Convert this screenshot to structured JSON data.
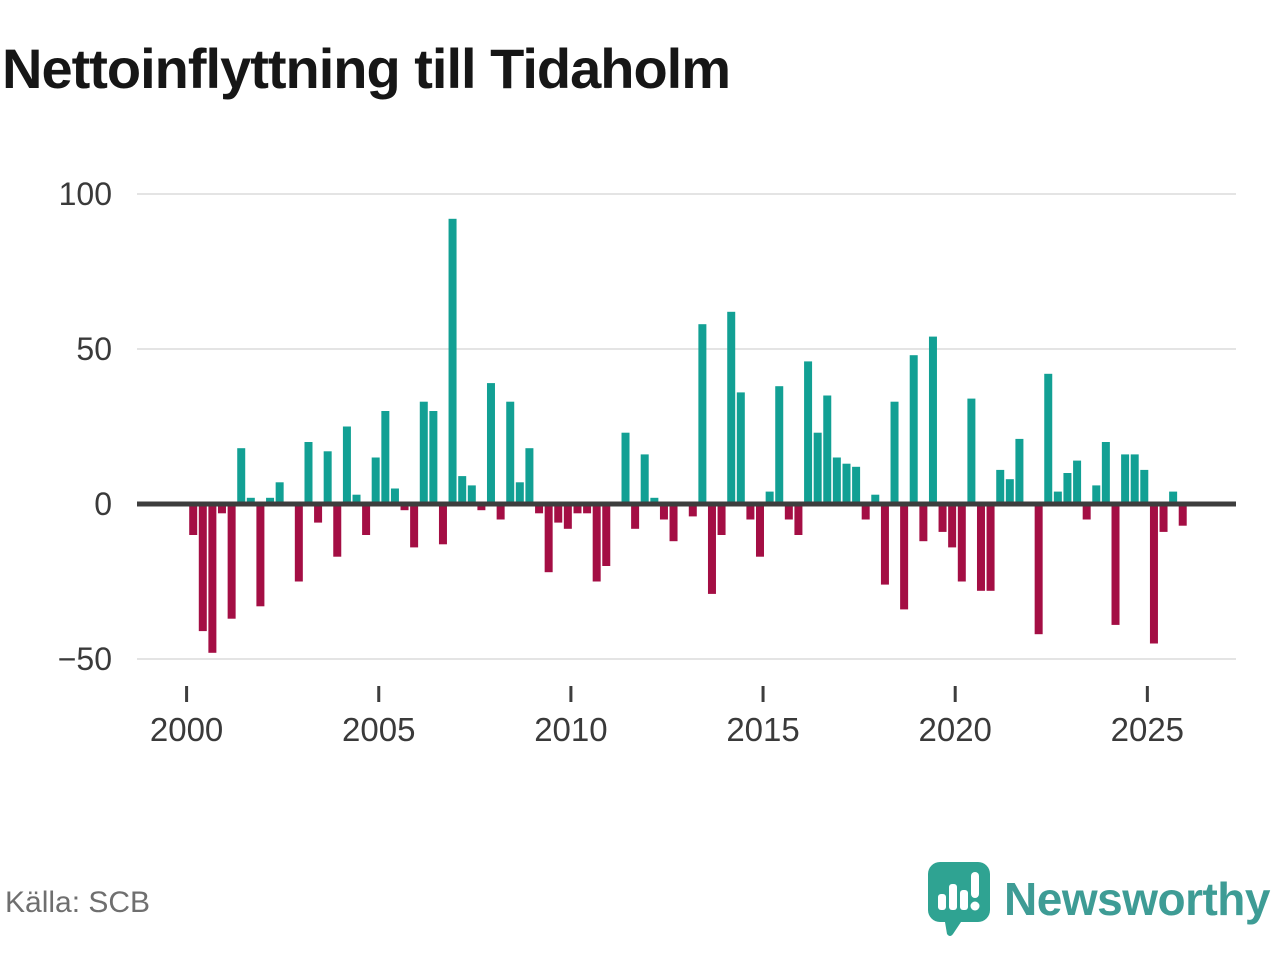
{
  "title": "Nettoinflyttning till Tidaholm",
  "source": "Källa: SCB",
  "branding": {
    "name": "Newsworthy"
  },
  "colors": {
    "positive": "#12a094",
    "negative": "#a40e44",
    "axis": "#3d3d3d",
    "grid": "#e4e4e4",
    "tick_label": "#3a3a3a",
    "brand_mark": "#2fa392",
    "brand_text": "#3e9c95"
  },
  "chart_data": {
    "type": "bar",
    "title": "Nettoinflyttning till Tidaholm",
    "xlabel": "",
    "ylabel": "",
    "x_unit": "quarter",
    "ylim": [
      -50,
      100
    ],
    "grid": true,
    "legend": false,
    "y_ticks": [
      100,
      50,
      0,
      -50
    ],
    "y_tick_labels": [
      "100",
      "50",
      "0",
      "−50"
    ],
    "x_ticks": [
      2000,
      2005,
      2010,
      2015,
      2020,
      2025
    ],
    "x_tick_labels": [
      "2000",
      "2005",
      "2010",
      "2015",
      "2020",
      "2025"
    ],
    "series": [
      {
        "year": 2000,
        "quarters": [
          -10,
          -41,
          -48,
          -3
        ]
      },
      {
        "year": 2001,
        "quarters": [
          -37,
          18,
          2,
          -33
        ]
      },
      {
        "year": 2002,
        "quarters": [
          2,
          7,
          0,
          -25
        ]
      },
      {
        "year": 2003,
        "quarters": [
          20,
          -6,
          17,
          -17
        ]
      },
      {
        "year": 2004,
        "quarters": [
          25,
          3,
          -10,
          15
        ]
      },
      {
        "year": 2005,
        "quarters": [
          30,
          5,
          -2,
          -14
        ]
      },
      {
        "year": 2006,
        "quarters": [
          33,
          30,
          -13,
          92
        ]
      },
      {
        "year": 2007,
        "quarters": [
          9,
          6,
          -2,
          39
        ]
      },
      {
        "year": 2008,
        "quarters": [
          -5,
          33,
          7,
          18
        ]
      },
      {
        "year": 2009,
        "quarters": [
          -3,
          -22,
          -6,
          -8
        ]
      },
      {
        "year": 2010,
        "quarters": [
          -3,
          -3,
          -25,
          -20
        ]
      },
      {
        "year": 2011,
        "quarters": [
          0,
          23,
          -8,
          16
        ]
      },
      {
        "year": 2012,
        "quarters": [
          2,
          -5,
          -12,
          0
        ]
      },
      {
        "year": 2013,
        "quarters": [
          -4,
          58,
          -29,
          -10
        ]
      },
      {
        "year": 2014,
        "quarters": [
          62,
          36,
          -5,
          -17
        ]
      },
      {
        "year": 2015,
        "quarters": [
          4,
          38,
          -5,
          -10
        ]
      },
      {
        "year": 2016,
        "quarters": [
          46,
          23,
          35,
          15
        ]
      },
      {
        "year": 2017,
        "quarters": [
          13,
          12,
          -5,
          3
        ]
      },
      {
        "year": 2018,
        "quarters": [
          -26,
          33,
          -34,
          48
        ]
      },
      {
        "year": 2019,
        "quarters": [
          -12,
          54,
          -9,
          -14
        ]
      },
      {
        "year": 2020,
        "quarters": [
          -25,
          34,
          -28,
          -28
        ]
      },
      {
        "year": 2021,
        "quarters": [
          11,
          8,
          21,
          0
        ]
      },
      {
        "year": 2022,
        "quarters": [
          -42,
          42,
          4,
          10
        ]
      },
      {
        "year": 2023,
        "quarters": [
          14,
          -5,
          6,
          20
        ]
      },
      {
        "year": 2024,
        "quarters": [
          -39,
          16,
          16,
          11
        ]
      },
      {
        "year": 2025,
        "quarters": [
          -45,
          -9,
          4,
          -7
        ]
      }
    ]
  }
}
